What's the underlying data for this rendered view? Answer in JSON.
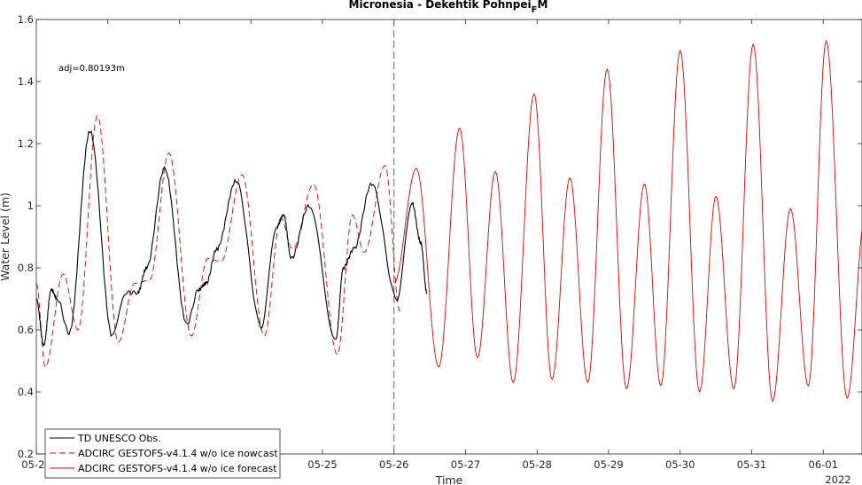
{
  "chart_data": {
    "type": "line",
    "title_main": "Micronesia - Dekehtik Pohnpei",
    "title_sub": "F",
    "title_tail": "M",
    "xlabel": "Time",
    "ylabel": "Water Level (m)",
    "annotation": "adj=0.80193m",
    "year_label": "2022",
    "xlim": [
      "05-21",
      "06-01 13:00"
    ],
    "ylim": [
      0.2,
      1.6
    ],
    "yticks": [
      0.2,
      0.4,
      0.6,
      0.8,
      1,
      1.2,
      1.4,
      1.6
    ],
    "ytick_labels": [
      "0.2",
      "0.4",
      "0.6",
      "0.8",
      "1",
      "1.2",
      "1.4",
      "1.6"
    ],
    "xtick_labels": [
      "05-21",
      "05-22",
      "05-23",
      "05-24",
      "05-25",
      "05-26",
      "05-27",
      "05-28",
      "05-29",
      "05-30",
      "05-31",
      "06-01"
    ],
    "forecast_start": "05-26",
    "grid": false,
    "legend_position": "bottom-left",
    "series": [
      {
        "name": "TD UNESCO Obs.",
        "color": "#000000",
        "style": "solid",
        "points": [
          [
            "05-21 00:00",
            0.7
          ],
          [
            "05-21 02:30",
            0.55
          ],
          [
            "05-21 05:00",
            0.73
          ],
          [
            "05-21 07:00",
            0.7
          ],
          [
            "05-21 11:00",
            0.59
          ],
          [
            "05-21 18:00",
            1.24
          ],
          [
            "05-22 01:30",
            0.58
          ],
          [
            "05-22 06:00",
            0.72
          ],
          [
            "05-22 10:00",
            0.72
          ],
          [
            "05-22 13:00",
            0.8
          ],
          [
            "05-22 19:00",
            1.12
          ],
          [
            "05-23 02:30",
            0.62
          ],
          [
            "05-23 06:30",
            0.73
          ],
          [
            "05-23 09:00",
            0.75
          ],
          [
            "05-23 12:30",
            0.86
          ],
          [
            "05-23 19:00",
            1.08
          ],
          [
            "05-24 03:30",
            0.61
          ],
          [
            "05-24 08:30",
            0.93
          ],
          [
            "05-24 11:00",
            0.97
          ],
          [
            "05-24 13:30",
            0.83
          ],
          [
            "05-24 19:30",
            1.0
          ],
          [
            "05-25 04:30",
            0.57
          ],
          [
            "05-25 07:00",
            0.8
          ],
          [
            "05-25 10:30",
            0.86
          ],
          [
            "05-25 16:30",
            1.07
          ],
          [
            "05-26 01:00",
            0.7
          ],
          [
            "05-26 06:00",
            1.01
          ],
          [
            "05-26 09:00",
            0.88
          ],
          [
            "05-26 11:00",
            0.72
          ]
        ]
      },
      {
        "name": "ADCIRC GESTOFS-v4.1.4 w/o ice nowcast",
        "color": "#e00000",
        "style": "dashed",
        "points": [
          [
            "05-21 00:00",
            0.75
          ],
          [
            "05-21 03:00",
            0.48
          ],
          [
            "05-21 09:00",
            0.78
          ],
          [
            "05-21 14:00",
            0.6
          ],
          [
            "05-21 20:30",
            1.29
          ],
          [
            "05-22 03:30",
            0.56
          ],
          [
            "05-22 09:00",
            0.75
          ],
          [
            "05-22 14:00",
            0.76
          ],
          [
            "05-22 20:30",
            1.17
          ],
          [
            "05-23 04:00",
            0.58
          ],
          [
            "05-23 09:30",
            0.83
          ],
          [
            "05-23 14:00",
            0.82
          ],
          [
            "05-23 21:00",
            1.1
          ],
          [
            "05-24 04:30",
            0.58
          ],
          [
            "05-24 10:00",
            0.96
          ],
          [
            "05-24 14:00",
            0.86
          ],
          [
            "05-24 21:00",
            1.07
          ],
          [
            "05-25 05:00",
            0.52
          ],
          [
            "05-25 10:00",
            0.97
          ],
          [
            "05-25 14:00",
            0.85
          ],
          [
            "05-25 21:00",
            1.13
          ],
          [
            "05-26 02:00",
            0.66
          ]
        ]
      },
      {
        "name": "ADCIRC GESTOFS-v4.1.4 w/o ice forecast",
        "color": "#e00000",
        "style": "solid",
        "points": [
          [
            "05-26 00:00",
            0.75
          ],
          [
            "05-26 07:30",
            1.12
          ],
          [
            "05-26 15:00",
            0.48
          ],
          [
            "05-26 22:00",
            1.25
          ],
          [
            "05-27 04:00",
            0.51
          ],
          [
            "05-27 10:00",
            1.11
          ],
          [
            "05-27 16:00",
            0.43
          ],
          [
            "05-27 23:00",
            1.36
          ],
          [
            "05-28 05:00",
            0.44
          ],
          [
            "05-28 11:00",
            1.09
          ],
          [
            "05-28 17:00",
            0.43
          ],
          [
            "05-28 23:30",
            1.44
          ],
          [
            "05-29 06:00",
            0.41
          ],
          [
            "05-29 12:00",
            1.07
          ],
          [
            "05-29 17:30",
            0.42
          ],
          [
            "05-30 00:00",
            1.5
          ],
          [
            "05-30 06:30",
            0.4
          ],
          [
            "05-30 12:00",
            1.03
          ],
          [
            "05-30 18:00",
            0.41
          ],
          [
            "05-31 00:30",
            1.52
          ],
          [
            "05-31 07:00",
            0.37
          ],
          [
            "05-31 13:00",
            0.99
          ],
          [
            "05-31 19:00",
            0.42
          ],
          [
            "06-01 01:00",
            1.53
          ],
          [
            "06-01 08:00",
            0.38
          ],
          [
            "06-01 14:00",
            0.96
          ],
          [
            "06-01 19:30",
            0.43
          ],
          [
            "06-01 23:00",
            0.56
          ]
        ]
      }
    ]
  }
}
